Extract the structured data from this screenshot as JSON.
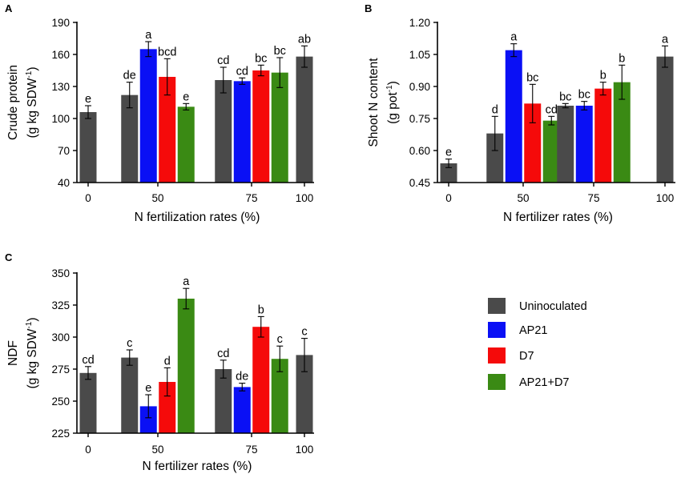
{
  "colors": {
    "Uninoculated": "#4a4a4a",
    "AP21": "#0a10f5",
    "D7": "#f50a0a",
    "AP21+D7": "#3a8a14"
  },
  "legend": [
    "Uninoculated",
    "AP21",
    "D7",
    "AP21+D7"
  ],
  "chart_data": [
    {
      "panel": "A",
      "type": "bar",
      "x_ticks": [
        "0",
        "50",
        "75",
        "100"
      ],
      "xlabel": "N fertilization rates (%)",
      "ylabel_line1": "Crude protein",
      "ylabel_line2": "(g  kg SDW",
      "ylabel_sup": "-1",
      "ylabel_close": ")",
      "ylim": [
        40,
        190
      ],
      "yticks": [
        40,
        70,
        100,
        130,
        160,
        190
      ],
      "y_decimals": 0,
      "bars": [
        {
          "rate": "0",
          "treatment": "Uninoculated",
          "value": 106,
          "err": 6,
          "label": "e"
        },
        {
          "rate": "50",
          "treatment": "Uninoculated",
          "value": 122,
          "err": 12,
          "label": "de"
        },
        {
          "rate": "50",
          "treatment": "AP21",
          "value": 165,
          "err": 7,
          "label": "a"
        },
        {
          "rate": "50",
          "treatment": "D7",
          "value": 139,
          "err": 17,
          "label": "bcd"
        },
        {
          "rate": "50",
          "treatment": "AP21+D7",
          "value": 111,
          "err": 3,
          "label": "e"
        },
        {
          "rate": "75",
          "treatment": "Uninoculated",
          "value": 136,
          "err": 12,
          "label": "cd"
        },
        {
          "rate": "75",
          "treatment": "AP21",
          "value": 135,
          "err": 3,
          "label": "cd"
        },
        {
          "rate": "75",
          "treatment": "D7",
          "value": 145,
          "err": 5,
          "label": "bc"
        },
        {
          "rate": "75",
          "treatment": "AP21+D7",
          "value": 143,
          "err": 14,
          "label": "bc"
        },
        {
          "rate": "100",
          "treatment": "Uninoculated",
          "value": 158,
          "err": 10,
          "label": "ab"
        }
      ]
    },
    {
      "panel": "B",
      "type": "bar",
      "x_ticks": [
        "0",
        "50",
        "75",
        "100"
      ],
      "xlabel": "N fertilizer rates (%)",
      "ylabel_line1": "Shoot N content",
      "ylabel_line2": "(g  pot",
      "ylabel_sup": "-1",
      "ylabel_close": ")",
      "ylim": [
        0.45,
        1.2
      ],
      "yticks": [
        0.45,
        0.6,
        0.75,
        0.9,
        1.05,
        1.2
      ],
      "y_decimals": 2,
      "bars": [
        {
          "rate": "0",
          "treatment": "Uninoculated",
          "value": 0.54,
          "err": 0.02,
          "label": "e"
        },
        {
          "rate": "50",
          "treatment": "Uninoculated",
          "value": 0.68,
          "err": 0.08,
          "label": "d"
        },
        {
          "rate": "50",
          "treatment": "AP21",
          "value": 1.07,
          "err": 0.03,
          "label": "a"
        },
        {
          "rate": "50",
          "treatment": "D7",
          "value": 0.82,
          "err": 0.09,
          "label": "bc"
        },
        {
          "rate": "50",
          "treatment": "AP21+D7",
          "value": 0.74,
          "err": 0.02,
          "label": "cd"
        },
        {
          "rate": "75",
          "treatment": "Uninoculated",
          "value": 0.81,
          "err": 0.01,
          "label": "bc"
        },
        {
          "rate": "75",
          "treatment": "AP21",
          "value": 0.81,
          "err": 0.02,
          "label": "bc"
        },
        {
          "rate": "75",
          "treatment": "D7",
          "value": 0.89,
          "err": 0.03,
          "label": "b"
        },
        {
          "rate": "75",
          "treatment": "AP21+D7",
          "value": 0.92,
          "err": 0.08,
          "label": "b"
        },
        {
          "rate": "100",
          "treatment": "Uninoculated",
          "value": 1.04,
          "err": 0.05,
          "label": "a"
        }
      ]
    },
    {
      "panel": "C",
      "type": "bar",
      "x_ticks": [
        "0",
        "50",
        "75",
        "100"
      ],
      "xlabel": "N fertilizer rates (%)",
      "ylabel_line1": "NDF",
      "ylabel_line2": "(g  kg SDW",
      "ylabel_sup": "-1",
      "ylabel_close": ")",
      "ylim": [
        225,
        350
      ],
      "yticks": [
        225,
        250,
        275,
        300,
        325,
        350
      ],
      "y_decimals": 0,
      "bars": [
        {
          "rate": "0",
          "treatment": "Uninoculated",
          "value": 272,
          "err": 5,
          "label": "cd"
        },
        {
          "rate": "50",
          "treatment": "Uninoculated",
          "value": 284,
          "err": 6,
          "label": "c"
        },
        {
          "rate": "50",
          "treatment": "AP21",
          "value": 246,
          "err": 9,
          "label": "e"
        },
        {
          "rate": "50",
          "treatment": "D7",
          "value": 265,
          "err": 11,
          "label": "d"
        },
        {
          "rate": "50",
          "treatment": "AP21+D7",
          "value": 330,
          "err": 8,
          "label": "a"
        },
        {
          "rate": "75",
          "treatment": "Uninoculated",
          "value": 275,
          "err": 7,
          "label": "cd"
        },
        {
          "rate": "75",
          "treatment": "AP21",
          "value": 261,
          "err": 3,
          "label": "de"
        },
        {
          "rate": "75",
          "treatment": "D7",
          "value": 308,
          "err": 8,
          "label": "b"
        },
        {
          "rate": "75",
          "treatment": "AP21+D7",
          "value": 283,
          "err": 10,
          "label": "c"
        },
        {
          "rate": "100",
          "treatment": "Uninoculated",
          "value": 286,
          "err": 13,
          "label": "c"
        }
      ]
    }
  ]
}
